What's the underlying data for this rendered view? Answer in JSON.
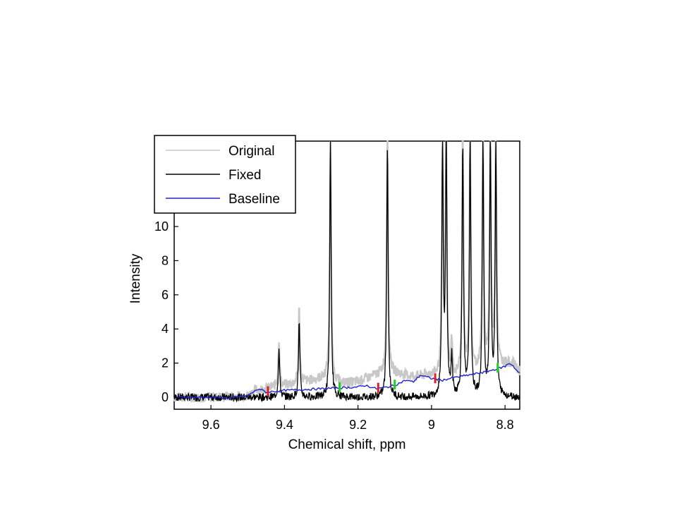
{
  "chart_data": {
    "type": "line",
    "xlabel": "Chemical shift, ppm",
    "ylabel": "Intensity",
    "x_reversed": true,
    "xlim": [
      9.7,
      8.76
    ],
    "ylim": [
      -0.7,
      15
    ],
    "x_ticks": [
      9.6,
      9.4,
      9.2,
      9,
      8.8
    ],
    "x_tick_labels": [
      "9.6",
      "9.4",
      "9.2",
      "9",
      "8.8"
    ],
    "y_ticks": [
      0,
      2,
      4,
      6,
      8,
      10
    ],
    "y_tick_labels": [
      "0",
      "2",
      "4",
      "6",
      "8",
      "10"
    ],
    "grid": false,
    "legend_position": "top-left",
    "series": [
      {
        "name": "Original",
        "color": "#c8c8c8",
        "x": [
          9.7,
          9.6,
          9.5,
          9.48,
          9.45,
          9.43,
          9.4,
          9.37,
          9.35,
          9.32,
          9.28,
          9.25,
          9.2,
          9.15,
          9.12,
          9.1,
          9.05,
          9.0,
          8.95,
          8.9,
          8.85,
          8.8,
          8.78,
          8.76
        ],
        "y": [
          0.0,
          0.0,
          0.1,
          0.4,
          0.5,
          0.6,
          0.7,
          0.8,
          0.9,
          1.0,
          1.2,
          0.8,
          0.9,
          1.3,
          1.5,
          1.4,
          1.2,
          1.3,
          1.0,
          1.4,
          1.7,
          1.9,
          2.0,
          1.5
        ]
      },
      {
        "name": "Fixed",
        "color": "#000000",
        "peaks": [
          {
            "ppm": 9.415,
            "height": 2.8
          },
          {
            "ppm": 9.36,
            "height": 4.4
          },
          {
            "ppm": 9.275,
            "height": 15
          },
          {
            "ppm": 9.12,
            "height": 15
          },
          {
            "ppm": 8.97,
            "height": 15
          },
          {
            "ppm": 8.96,
            "height": 15
          },
          {
            "ppm": 8.945,
            "height": 2.2
          },
          {
            "ppm": 8.915,
            "height": 15
          },
          {
            "ppm": 8.895,
            "height": 15
          },
          {
            "ppm": 8.86,
            "height": 15
          },
          {
            "ppm": 8.84,
            "height": 15
          },
          {
            "ppm": 8.825,
            "height": 15
          }
        ],
        "baseline_value": 0.0
      },
      {
        "name": "Baseline",
        "color": "#2222cc",
        "x": [
          9.7,
          9.6,
          9.55,
          9.5,
          9.47,
          9.45,
          9.4,
          9.35,
          9.3,
          9.25,
          9.2,
          9.18,
          9.15,
          9.12,
          9.1,
          9.07,
          9.05,
          9.03,
          9.0,
          8.97,
          8.95,
          8.9,
          8.85,
          8.8,
          8.79,
          8.78,
          8.77,
          8.76
        ],
        "y": [
          0.0,
          0.0,
          -0.05,
          0.1,
          0.5,
          0.3,
          0.4,
          0.45,
          0.5,
          0.55,
          0.6,
          0.7,
          0.5,
          0.6,
          0.7,
          1.0,
          0.9,
          1.3,
          1.1,
          1.0,
          1.1,
          1.3,
          1.5,
          1.8,
          2.0,
          1.9,
          1.6,
          1.4
        ]
      }
    ],
    "markers": {
      "red_ppm": [
        9.445,
        9.145,
        8.99
      ],
      "green_ppm": [
        9.25,
        9.1,
        8.82
      ]
    }
  }
}
